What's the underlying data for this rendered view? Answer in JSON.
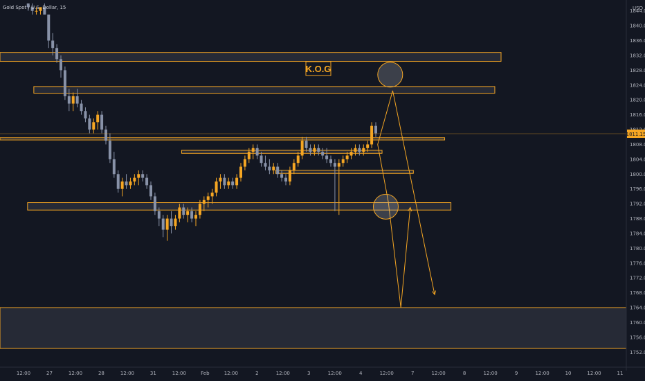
{
  "header": {
    "symbol_text": "Gold Spot / U.S. Dollar, 15",
    "currency_label": "USD"
  },
  "colors": {
    "background": "#131722",
    "zone_stroke": "#f5a623",
    "zone_fill": "#2a2e39",
    "up_candle": "#f5a623",
    "down_candle": "#8892a8",
    "projection": "#f5a623",
    "axis_text": "#b2b5be",
    "price_line": "#f5a623"
  },
  "annotations": {
    "kog_label": "K.O.G"
  },
  "chart_data": {
    "type": "candlestick",
    "current_price_label": "1811.15",
    "current_price": 1811.15,
    "ylim": [
      1750,
      1846
    ],
    "y_ticks": [
      "1844.00",
      "1840.00",
      "1836.00",
      "1832.00",
      "1828.00",
      "1824.00",
      "1820.00",
      "1816.00",
      "1812.00",
      "1808.00",
      "1804.00",
      "1800.00",
      "1796.00",
      "1792.00",
      "1788.00",
      "1784.00",
      "1780.00",
      "1776.00",
      "1772.00",
      "1768.00",
      "1764.00",
      "1760.00",
      "1756.00",
      "1752.00"
    ],
    "x_ticks": [
      "12:00",
      "27",
      "12:00",
      "28",
      "12:00",
      "31",
      "12:00",
      "Feb",
      "12:00",
      "2",
      "12:00",
      "3",
      "12:00",
      "4",
      "12:00",
      "7",
      "12:00",
      "8",
      "12:00",
      "9",
      "12:00",
      "10",
      "12:00",
      "11"
    ],
    "zones": [
      {
        "low": 1830.4,
        "high": 1832.8,
        "x_end": 0.8
      },
      {
        "low": 1821.8,
        "high": 1823.6,
        "x_end": 0.79
      },
      {
        "low": 1809.2,
        "high": 1809.8,
        "x_end": 0.71
      },
      {
        "low": 1805.6,
        "high": 1806.4,
        "x_end": 0.61
      },
      {
        "low": 1800.2,
        "high": 1801.0,
        "x_end": 0.66
      },
      {
        "low": 1790.3,
        "high": 1792.3,
        "x_end": 0.72
      },
      {
        "low": 1753.0,
        "high": 1764.0,
        "x_end": 1.0
      }
    ],
    "candles": [
      [
        1846,
        1846,
        1844,
        1845
      ],
      [
        1845,
        1846,
        1843,
        1844
      ],
      [
        1844,
        1845,
        1843,
        1844
      ],
      [
        1844,
        1845,
        1843,
        1845
      ],
      [
        1845,
        1846,
        1843,
        1843
      ],
      [
        1843,
        1843,
        1834,
        1836
      ],
      [
        1836,
        1838,
        1832,
        1834
      ],
      [
        1834,
        1835,
        1830,
        1831
      ],
      [
        1831,
        1832,
        1826,
        1828
      ],
      [
        1828,
        1829,
        1820,
        1821
      ],
      [
        1821,
        1823,
        1817,
        1819
      ],
      [
        1819,
        1822,
        1817,
        1821
      ],
      [
        1821,
        1823,
        1818,
        1819
      ],
      [
        1819,
        1820,
        1816,
        1817
      ],
      [
        1817,
        1818,
        1814,
        1815
      ],
      [
        1815,
        1816,
        1811,
        1812
      ],
      [
        1812,
        1815,
        1811,
        1814
      ],
      [
        1814,
        1817,
        1812,
        1816
      ],
      [
        1816,
        1817,
        1811,
        1812
      ],
      [
        1812,
        1813,
        1808,
        1809
      ],
      [
        1809,
        1811,
        1803,
        1804
      ],
      [
        1804,
        1806,
        1799,
        1800
      ],
      [
        1800,
        1801,
        1795,
        1796
      ],
      [
        1796,
        1799,
        1794,
        1798
      ],
      [
        1798,
        1800,
        1796,
        1797
      ],
      [
        1797,
        1799,
        1796,
        1798
      ],
      [
        1798,
        1800,
        1797,
        1799
      ],
      [
        1799,
        1801,
        1797,
        1800
      ],
      [
        1800,
        1801,
        1798,
        1799
      ],
      [
        1799,
        1800,
        1796,
        1797
      ],
      [
        1797,
        1798,
        1793,
        1794
      ],
      [
        1794,
        1795,
        1789,
        1790
      ],
      [
        1790,
        1791,
        1786,
        1788
      ],
      [
        1788,
        1789,
        1783,
        1785
      ],
      [
        1785,
        1789,
        1782,
        1788
      ],
      [
        1788,
        1790,
        1784,
        1786
      ],
      [
        1786,
        1789,
        1785,
        1788
      ],
      [
        1788,
        1792,
        1787,
        1791
      ],
      [
        1791,
        1792,
        1788,
        1789
      ],
      [
        1789,
        1791,
        1787,
        1790
      ],
      [
        1790,
        1791,
        1787,
        1788
      ],
      [
        1788,
        1790,
        1786,
        1789
      ],
      [
        1789,
        1793,
        1788,
        1792
      ],
      [
        1792,
        1794,
        1790,
        1793
      ],
      [
        1793,
        1795,
        1791,
        1794
      ],
      [
        1794,
        1796,
        1792,
        1795
      ],
      [
        1795,
        1799,
        1794,
        1798
      ],
      [
        1798,
        1800,
        1796,
        1799
      ],
      [
        1799,
        1800,
        1796,
        1797
      ],
      [
        1797,
        1799,
        1796,
        1798
      ],
      [
        1798,
        1799,
        1796,
        1797
      ],
      [
        1797,
        1800,
        1796,
        1799
      ],
      [
        1799,
        1803,
        1798,
        1802
      ],
      [
        1802,
        1805,
        1801,
        1804
      ],
      [
        1804,
        1807,
        1803,
        1806
      ],
      [
        1806,
        1808,
        1804,
        1807
      ],
      [
        1807,
        1808,
        1804,
        1805
      ],
      [
        1805,
        1806,
        1802,
        1803
      ],
      [
        1803,
        1805,
        1801,
        1802
      ],
      [
        1802,
        1804,
        1800,
        1801
      ],
      [
        1801,
        1803,
        1800,
        1802
      ],
      [
        1802,
        1803,
        1799,
        1800
      ],
      [
        1800,
        1801,
        1798,
        1799
      ],
      [
        1799,
        1800,
        1797,
        1798
      ],
      [
        1798,
        1802,
        1797,
        1801
      ],
      [
        1801,
        1804,
        1800,
        1803
      ],
      [
        1803,
        1806,
        1802,
        1805
      ],
      [
        1805,
        1810,
        1804,
        1809
      ],
      [
        1809,
        1810,
        1806,
        1807
      ],
      [
        1807,
        1808,
        1805,
        1806
      ],
      [
        1806,
        1808,
        1805,
        1807
      ],
      [
        1807,
        1808,
        1805,
        1806
      ],
      [
        1806,
        1807,
        1804,
        1805
      ],
      [
        1805,
        1807,
        1803,
        1804
      ],
      [
        1804,
        1805,
        1802,
        1803
      ],
      [
        1803,
        1804,
        1790,
        1802
      ],
      [
        1802,
        1804,
        1789,
        1803
      ],
      [
        1803,
        1805,
        1802,
        1804
      ],
      [
        1804,
        1806,
        1803,
        1805
      ],
      [
        1805,
        1807,
        1804,
        1806
      ],
      [
        1806,
        1808,
        1805,
        1807
      ],
      [
        1807,
        1808,
        1805,
        1806
      ],
      [
        1806,
        1808,
        1805,
        1807
      ],
      [
        1807,
        1809,
        1806,
        1808
      ],
      [
        1808,
        1814,
        1807,
        1813
      ],
      [
        1813,
        1814,
        1810,
        1811
      ]
    ],
    "projections": [
      {
        "name": "up-then-down",
        "points": [
          [
            0.603,
            1808
          ],
          [
            0.627,
            1822.5
          ],
          [
            0.694,
            1767.5
          ]
        ]
      },
      {
        "name": "down-then-up",
        "points": [
          [
            0.603,
            1808
          ],
          [
            0.62,
            1792.5
          ],
          [
            0.64,
            1764
          ],
          [
            0.655,
            1791
          ]
        ]
      }
    ],
    "circles": [
      {
        "x": 0.623,
        "price": 1826.8
      },
      {
        "x": 0.616,
        "price": 1791.2
      }
    ]
  }
}
